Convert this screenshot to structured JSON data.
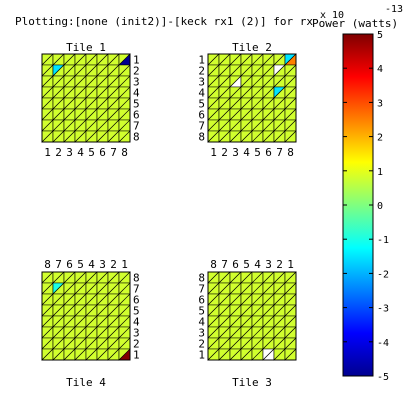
{
  "chart_data": {
    "type": "heatmap",
    "title": "Plotting:[none (init2)]-[keck rx1 (2)] for rx",
    "title_overlap": "Power (watts)",
    "grid_size": 8,
    "colorbar": {
      "min": -5,
      "max": 5,
      "ticks": [
        "5",
        "4",
        "3",
        "2",
        "1",
        "0",
        "-1",
        "-2",
        "-3",
        "-4",
        "-5"
      ],
      "exponent_base": "x 10",
      "exponent": "-13"
    },
    "tiles": [
      {
        "name": "Tile 1",
        "title_position": "top",
        "row_ticks": [
          "1",
          "2",
          "3",
          "4",
          "5",
          "6",
          "7",
          "8"
        ],
        "col_ticks": [
          "1",
          "2",
          "3",
          "4",
          "5",
          "6",
          "7",
          "8"
        ],
        "row_side": "right",
        "col_side": "bottom",
        "special_triangles": [
          {
            "row": 1,
            "col": 8,
            "half": "lower",
            "value": -5
          },
          {
            "row": 2,
            "col": 2,
            "half": "upper",
            "value": -1.5
          }
        ]
      },
      {
        "name": "Tile 2",
        "title_position": "top",
        "row_ticks": [
          "1",
          "2",
          "3",
          "4",
          "5",
          "6",
          "7",
          "8"
        ],
        "col_ticks": [
          "1",
          "2",
          "3",
          "4",
          "5",
          "6",
          "7",
          "8"
        ],
        "row_side": "left",
        "col_side": "bottom",
        "special_triangles": [
          {
            "row": 1,
            "col": 8,
            "half": "lower",
            "value": 2.5
          },
          {
            "row": 1,
            "col": 8,
            "half": "upper",
            "value": -1.5
          },
          {
            "row": 2,
            "col": 7,
            "half": "upper",
            "value": null
          },
          {
            "row": 3,
            "col": 3,
            "half": "lower",
            "value": null
          },
          {
            "row": 1,
            "col": 1,
            "half": "lower",
            "value": 0.8
          },
          {
            "row": 4,
            "col": 7,
            "half": "upper",
            "value": -1.5
          }
        ]
      },
      {
        "name": "Tile 4",
        "title_position": "bottom",
        "row_ticks": [
          "8",
          "7",
          "6",
          "5",
          "4",
          "3",
          "2",
          "1"
        ],
        "col_ticks": [
          "8",
          "7",
          "6",
          "5",
          "4",
          "3",
          "2",
          "1"
        ],
        "row_side": "right",
        "col_side": "top",
        "special_triangles": [
          {
            "row": 8,
            "col": 8,
            "half": "lower",
            "value": 5
          },
          {
            "row": 2,
            "col": 2,
            "half": "upper",
            "value": -1
          },
          {
            "row": 8,
            "col": 1,
            "half": "lower",
            "value": 0.8
          },
          {
            "row": 6,
            "col": 7,
            "half": "upper",
            "value": 0.8
          }
        ]
      },
      {
        "name": "Tile 3",
        "title_position": "bottom",
        "row_ticks": [
          "8",
          "7",
          "6",
          "5",
          "4",
          "3",
          "2",
          "1"
        ],
        "col_ticks": [
          "8",
          "7",
          "6",
          "5",
          "4",
          "3",
          "2",
          "1"
        ],
        "row_side": "left",
        "col_side": "top",
        "special_triangles": [
          {
            "row": 8,
            "col": 6,
            "half": "lower",
            "value": null
          },
          {
            "row": 8,
            "col": 6,
            "half": "upper",
            "value": null
          }
        ]
      }
    ]
  }
}
